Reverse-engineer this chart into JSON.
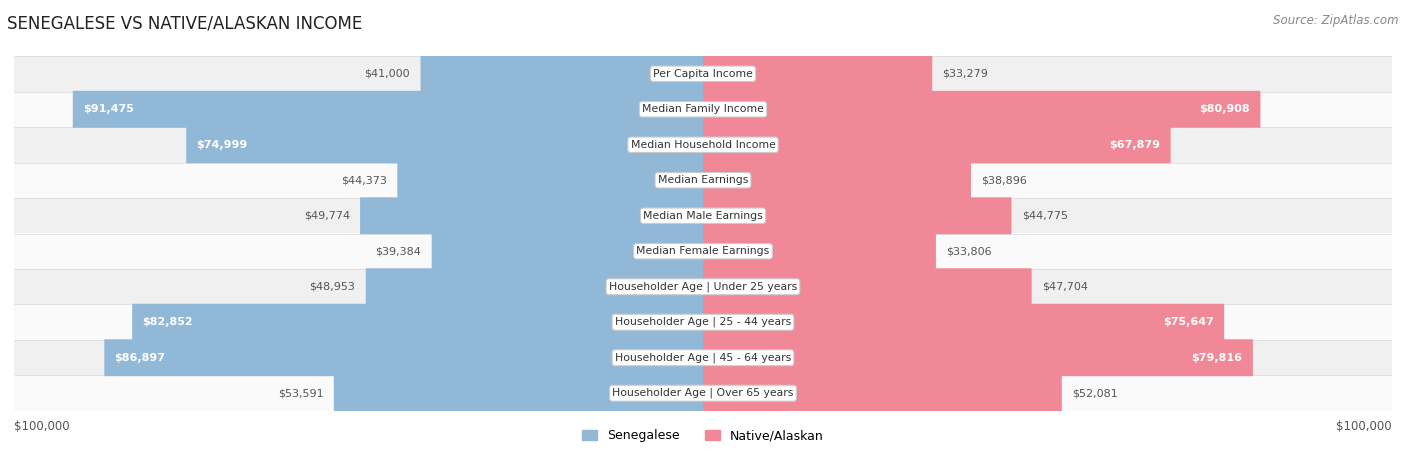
{
  "title": "SENEGALESE VS NATIVE/ALASKAN INCOME",
  "source": "Source: ZipAtlas.com",
  "categories": [
    "Per Capita Income",
    "Median Family Income",
    "Median Household Income",
    "Median Earnings",
    "Median Male Earnings",
    "Median Female Earnings",
    "Householder Age | Under 25 years",
    "Householder Age | 25 - 44 years",
    "Householder Age | 45 - 64 years",
    "Householder Age | Over 65 years"
  ],
  "senegalese": [
    41000,
    91475,
    74999,
    44373,
    49774,
    39384,
    48953,
    82852,
    86897,
    53591
  ],
  "native_alaskan": [
    33279,
    80908,
    67879,
    38896,
    44775,
    33806,
    47704,
    75647,
    79816,
    52081
  ],
  "senegalese_labels": [
    "$41,000",
    "$91,475",
    "$74,999",
    "$44,373",
    "$49,774",
    "$39,384",
    "$48,953",
    "$82,852",
    "$86,897",
    "$53,591"
  ],
  "native_labels": [
    "$33,279",
    "$80,908",
    "$67,879",
    "$38,896",
    "$44,775",
    "$33,806",
    "$47,704",
    "$75,647",
    "$79,816",
    "$52,081"
  ],
  "max_val": 100000,
  "senegalese_color": "#92b8d8",
  "native_color": "#f08898",
  "row_bg_odd": "#f0f0f0",
  "row_bg_even": "#fafafa",
  "row_border": "#d8d8d8",
  "label_inside_threshold": 65000,
  "x_axis_label_left": "$100,000",
  "x_axis_label_right": "$100,000",
  "legend_senegalese": "Senegalese",
  "legend_native": "Native/Alaskan"
}
